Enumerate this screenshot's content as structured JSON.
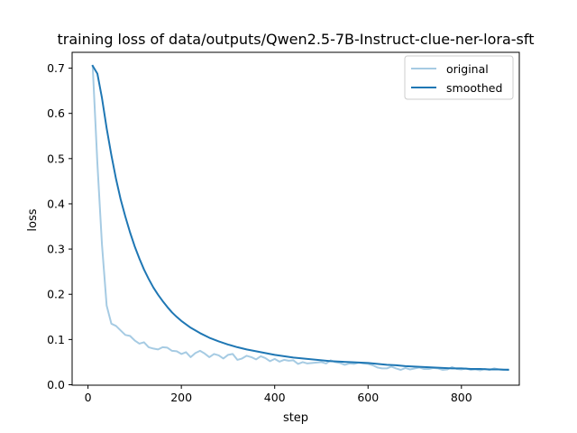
{
  "chart_data": {
    "type": "line",
    "title": "training loss of data/outputs/Qwen2.5-7B-Instruct-clue-ner-lora-sft",
    "xlabel": "step",
    "ylabel": "loss",
    "xlim": [
      -34,
      924
    ],
    "ylim": [
      -0.001,
      0.735
    ],
    "xticks": [
      0,
      200,
      400,
      600,
      800
    ],
    "yticks": [
      0.0,
      0.1,
      0.2,
      0.3,
      0.4,
      0.5,
      0.6,
      0.7
    ],
    "grid": false,
    "legend_position": "upper right",
    "series": [
      {
        "name": "original",
        "color": "#a6cbe3",
        "x": [
          10,
          20,
          30,
          40,
          50,
          60,
          70,
          80,
          90,
          100,
          110,
          120,
          130,
          140,
          150,
          160,
          170,
          180,
          190,
          200,
          210,
          220,
          230,
          240,
          250,
          260,
          270,
          280,
          290,
          300,
          310,
          320,
          330,
          340,
          350,
          360,
          370,
          380,
          390,
          400,
          410,
          420,
          430,
          440,
          450,
          460,
          470,
          480,
          490,
          500,
          510,
          520,
          530,
          540,
          550,
          560,
          570,
          580,
          590,
          600,
          610,
          620,
          630,
          640,
          650,
          660,
          670,
          680,
          690,
          700,
          710,
          720,
          730,
          740,
          750,
          760,
          770,
          780,
          790,
          800,
          810,
          820,
          830,
          840,
          850,
          860,
          870,
          880,
          890,
          900
        ],
        "y": [
          0.705,
          0.49,
          0.31,
          0.175,
          0.135,
          0.13,
          0.12,
          0.11,
          0.108,
          0.098,
          0.091,
          0.094,
          0.083,
          0.08,
          0.078,
          0.083,
          0.082,
          0.075,
          0.074,
          0.068,
          0.072,
          0.061,
          0.07,
          0.075,
          0.069,
          0.061,
          0.068,
          0.065,
          0.058,
          0.066,
          0.068,
          0.055,
          0.058,
          0.064,
          0.061,
          0.056,
          0.063,
          0.059,
          0.052,
          0.057,
          0.051,
          0.055,
          0.053,
          0.054,
          0.046,
          0.05,
          0.047,
          0.048,
          0.049,
          0.05,
          0.047,
          0.054,
          0.05,
          0.048,
          0.044,
          0.047,
          0.046,
          0.049,
          0.047,
          0.046,
          0.043,
          0.038,
          0.036,
          0.036,
          0.04,
          0.036,
          0.033,
          0.037,
          0.034,
          0.036,
          0.038,
          0.035,
          0.035,
          0.037,
          0.036,
          0.033,
          0.034,
          0.039,
          0.035,
          0.034,
          0.036,
          0.033,
          0.034,
          0.032,
          0.035,
          0.033,
          0.036,
          0.034,
          0.033,
          0.034
        ]
      },
      {
        "name": "smoothed",
        "color": "#1f77b4",
        "x": [
          10,
          20,
          30,
          40,
          50,
          60,
          70,
          80,
          90,
          100,
          110,
          120,
          130,
          140,
          150,
          160,
          170,
          180,
          190,
          200,
          220,
          240,
          260,
          280,
          300,
          320,
          340,
          360,
          380,
          400,
          420,
          440,
          460,
          480,
          500,
          520,
          540,
          560,
          580,
          600,
          620,
          640,
          660,
          680,
          700,
          720,
          740,
          760,
          780,
          800,
          820,
          840,
          860,
          880,
          900
        ],
        "y": [
          0.705,
          0.688,
          0.634,
          0.567,
          0.508,
          0.455,
          0.41,
          0.372,
          0.337,
          0.306,
          0.279,
          0.255,
          0.234,
          0.215,
          0.199,
          0.185,
          0.172,
          0.16,
          0.15,
          0.141,
          0.126,
          0.114,
          0.104,
          0.096,
          0.089,
          0.083,
          0.078,
          0.074,
          0.07,
          0.066,
          0.063,
          0.06,
          0.058,
          0.056,
          0.054,
          0.052,
          0.051,
          0.05,
          0.049,
          0.048,
          0.046,
          0.044,
          0.043,
          0.041,
          0.04,
          0.039,
          0.038,
          0.037,
          0.036,
          0.036,
          0.035,
          0.035,
          0.034,
          0.034,
          0.033
        ]
      }
    ]
  }
}
